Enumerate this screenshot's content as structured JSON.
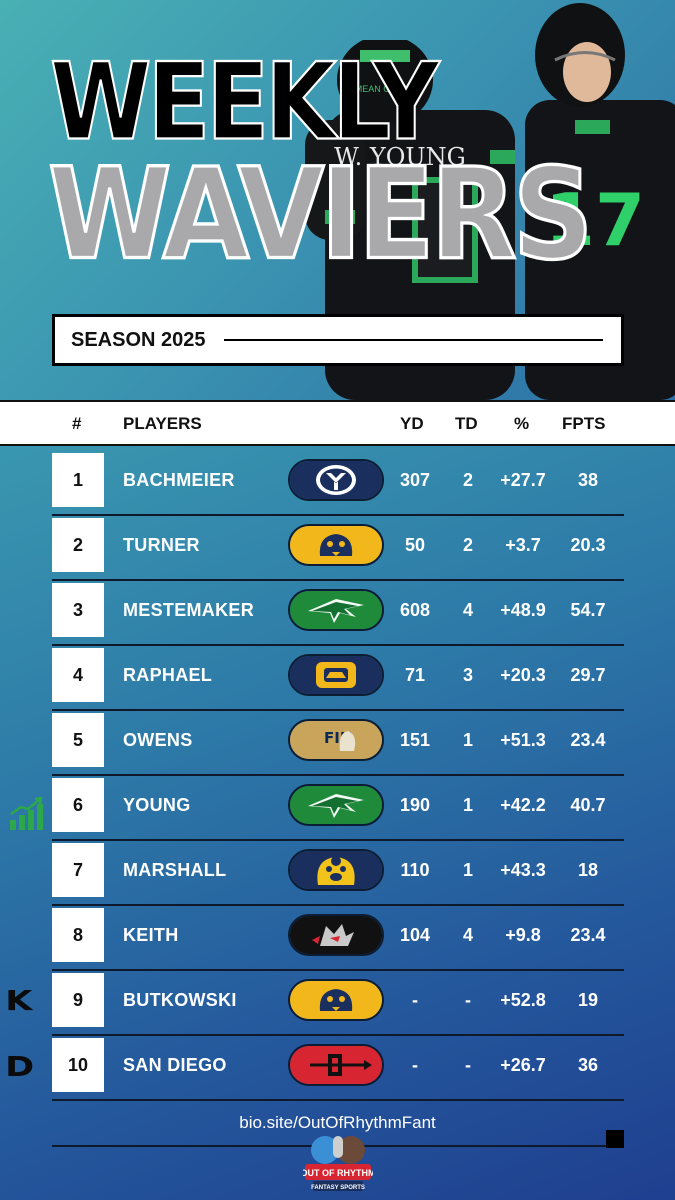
{
  "title": {
    "line1": "WEEKLY",
    "line2": "WAVIERS"
  },
  "hero": {
    "jersey_name": "W. YOUNG",
    "jersey_number": "17",
    "helmet_text": "MEAN GREEN"
  },
  "season": "SEASON 2025",
  "headers": {
    "num": "#",
    "players": "PLAYERS",
    "yd": "YD",
    "td": "TD",
    "pct": "%",
    "fpts": "FPTS"
  },
  "rows": [
    {
      "num": "1",
      "name": "BACHMEIER",
      "team_logo": "byu-logo",
      "yd": "307",
      "td": "2",
      "pct": "+27.7",
      "fpts": "38"
    },
    {
      "num": "2",
      "name": "TURNER",
      "team_logo": "cougar-logo",
      "yd": "50",
      "td": "2",
      "pct": "+3.7",
      "fpts": "20.3"
    },
    {
      "num": "3",
      "name": "MESTEMAKER",
      "team_logo": "eagle-logo",
      "yd": "608",
      "td": "4",
      "pct": "+48.9",
      "fpts": "54.7"
    },
    {
      "num": "4",
      "name": "RAPHAEL",
      "team_logo": "cal-bear-logo",
      "yd": "71",
      "td": "3",
      "pct": "+20.3",
      "fpts": "29.7"
    },
    {
      "num": "5",
      "name": "OWENS",
      "team_logo": "fiu-logo",
      "yd": "151",
      "td": "1",
      "pct": "+51.3",
      "fpts": "23.4"
    },
    {
      "num": "6",
      "name": "YOUNG",
      "team_logo": "eagle-logo",
      "yd": "190",
      "td": "1",
      "pct": "+42.2",
      "fpts": "40.7"
    },
    {
      "num": "7",
      "name": "MARSHALL",
      "team_logo": "bruin-logo",
      "yd": "110",
      "td": "1",
      "pct": "+43.3",
      "fpts": "18"
    },
    {
      "num": "8",
      "name": "KEITH",
      "team_logo": "wolf-logo",
      "yd": "104",
      "td": "4",
      "pct": "+9.8",
      "fpts": "23.4"
    },
    {
      "num": "9",
      "name": "BUTKOWSKI",
      "team_logo": "cougar-logo",
      "yd": "-",
      "td": "-",
      "pct": "+52.8",
      "fpts": "19"
    },
    {
      "num": "10",
      "name": "SAN DIEGO",
      "team_logo": "sdsu-logo",
      "yd": "-",
      "td": "-",
      "pct": "+26.7",
      "fpts": "36"
    }
  ],
  "side_labels": {
    "kicker": "K",
    "defense": "D"
  },
  "footer": {
    "link": "bio.site/OutOfRhythmFant",
    "brand_line1": "OUT OF RHYTHM",
    "brand_line2": "FANTASY SPORTS"
  },
  "colors": {
    "green": "#1e8a3a",
    "gold": "#f2b81b",
    "navy": "#1a2f5e",
    "red": "#d72631",
    "black": "#111111"
  }
}
